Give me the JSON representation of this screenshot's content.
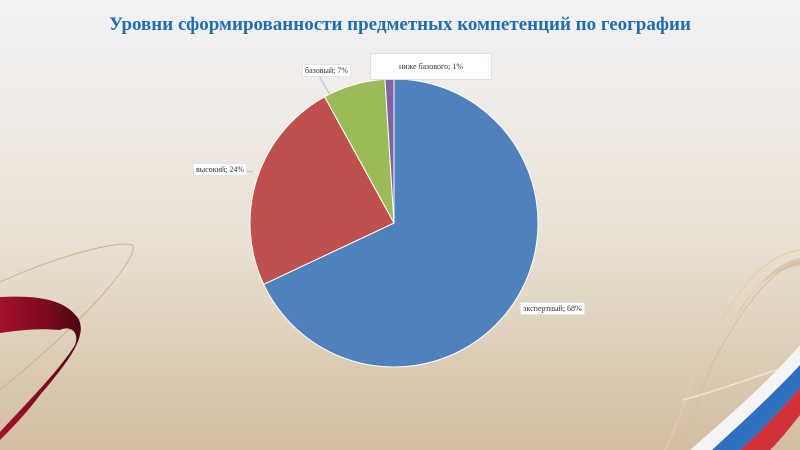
{
  "slide": {
    "title": "Уровни сформированности предметных компетенций по географии"
  },
  "chart_data": {
    "type": "pie",
    "title": "Уровни сформированности предметных компетенций по географии",
    "start_angle_deg": 0,
    "direction": "clockwise",
    "categories": [
      "экспертный",
      "высокий",
      "базовый",
      "ниже базового"
    ],
    "values": [
      68,
      24,
      7,
      1
    ],
    "unit": "%",
    "colors": [
      "#4f81bd",
      "#c0504d",
      "#9bbb59",
      "#8064a2"
    ],
    "labels": [
      {
        "text": "экспертный; 68%"
      },
      {
        "text": "высокий; 24%"
      },
      {
        "text": "базовый; 7%"
      },
      {
        "text": "ниже базового; 1%"
      }
    ],
    "legend": "none"
  },
  "colors": {
    "title": "#1f6eb3",
    "ribbon_red": "#9e1028",
    "flag_white": "#ffffff",
    "flag_blue": "#2f6fbf",
    "flag_red": "#d0323a"
  }
}
